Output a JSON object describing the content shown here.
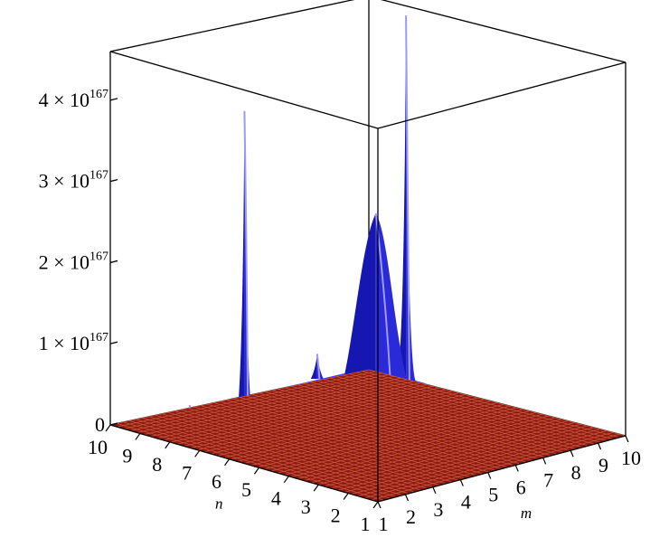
{
  "chart_data": {
    "type": "surface3d",
    "title": "",
    "xlabel": "m",
    "ylabel": "n",
    "zlabel": "",
    "x_ticks": [
      "1",
      "2",
      "3",
      "4",
      "5",
      "6",
      "7",
      "8",
      "9",
      "10"
    ],
    "y_ticks": [
      "1",
      "2",
      "3",
      "4",
      "5",
      "6",
      "7",
      "8",
      "9",
      "10"
    ],
    "z_ticks": [
      {
        "value": 0,
        "base": "0",
        "exp": ""
      },
      {
        "value": 1e+167,
        "base": "1 × 10",
        "exp": "167"
      },
      {
        "value": 2e+167,
        "base": "2 × 10",
        "exp": "167"
      },
      {
        "value": 3e+167,
        "base": "3 × 10",
        "exp": "167"
      },
      {
        "value": 4e+167,
        "base": "4 × 10",
        "exp": "167"
      }
    ],
    "xlim": [
      1,
      10
    ],
    "ylim": [
      1,
      10
    ],
    "zlim": [
      0,
      4.6e+167
    ],
    "series": [
      {
        "surface": "blue",
        "color": "#2a2ad8",
        "peaks": [
          {
            "m": 6.2,
            "n": 6.0,
            "z": 2.6e+167
          },
          {
            "m": 2.9,
            "n": 7.3,
            "z": 4e+167
          },
          {
            "m": 9.3,
            "n": 8.0,
            "z": 4.6e+167
          },
          {
            "m": 1.7,
            "n": 8.0,
            "z": 4e+166
          },
          {
            "m": 7.8,
            "n": 9.6,
            "z": 4e+166
          }
        ]
      },
      {
        "surface": "red",
        "color": "#8b1a10",
        "grid_color": "#d05a40",
        "z": 0
      }
    ],
    "box": true,
    "grid": false
  }
}
